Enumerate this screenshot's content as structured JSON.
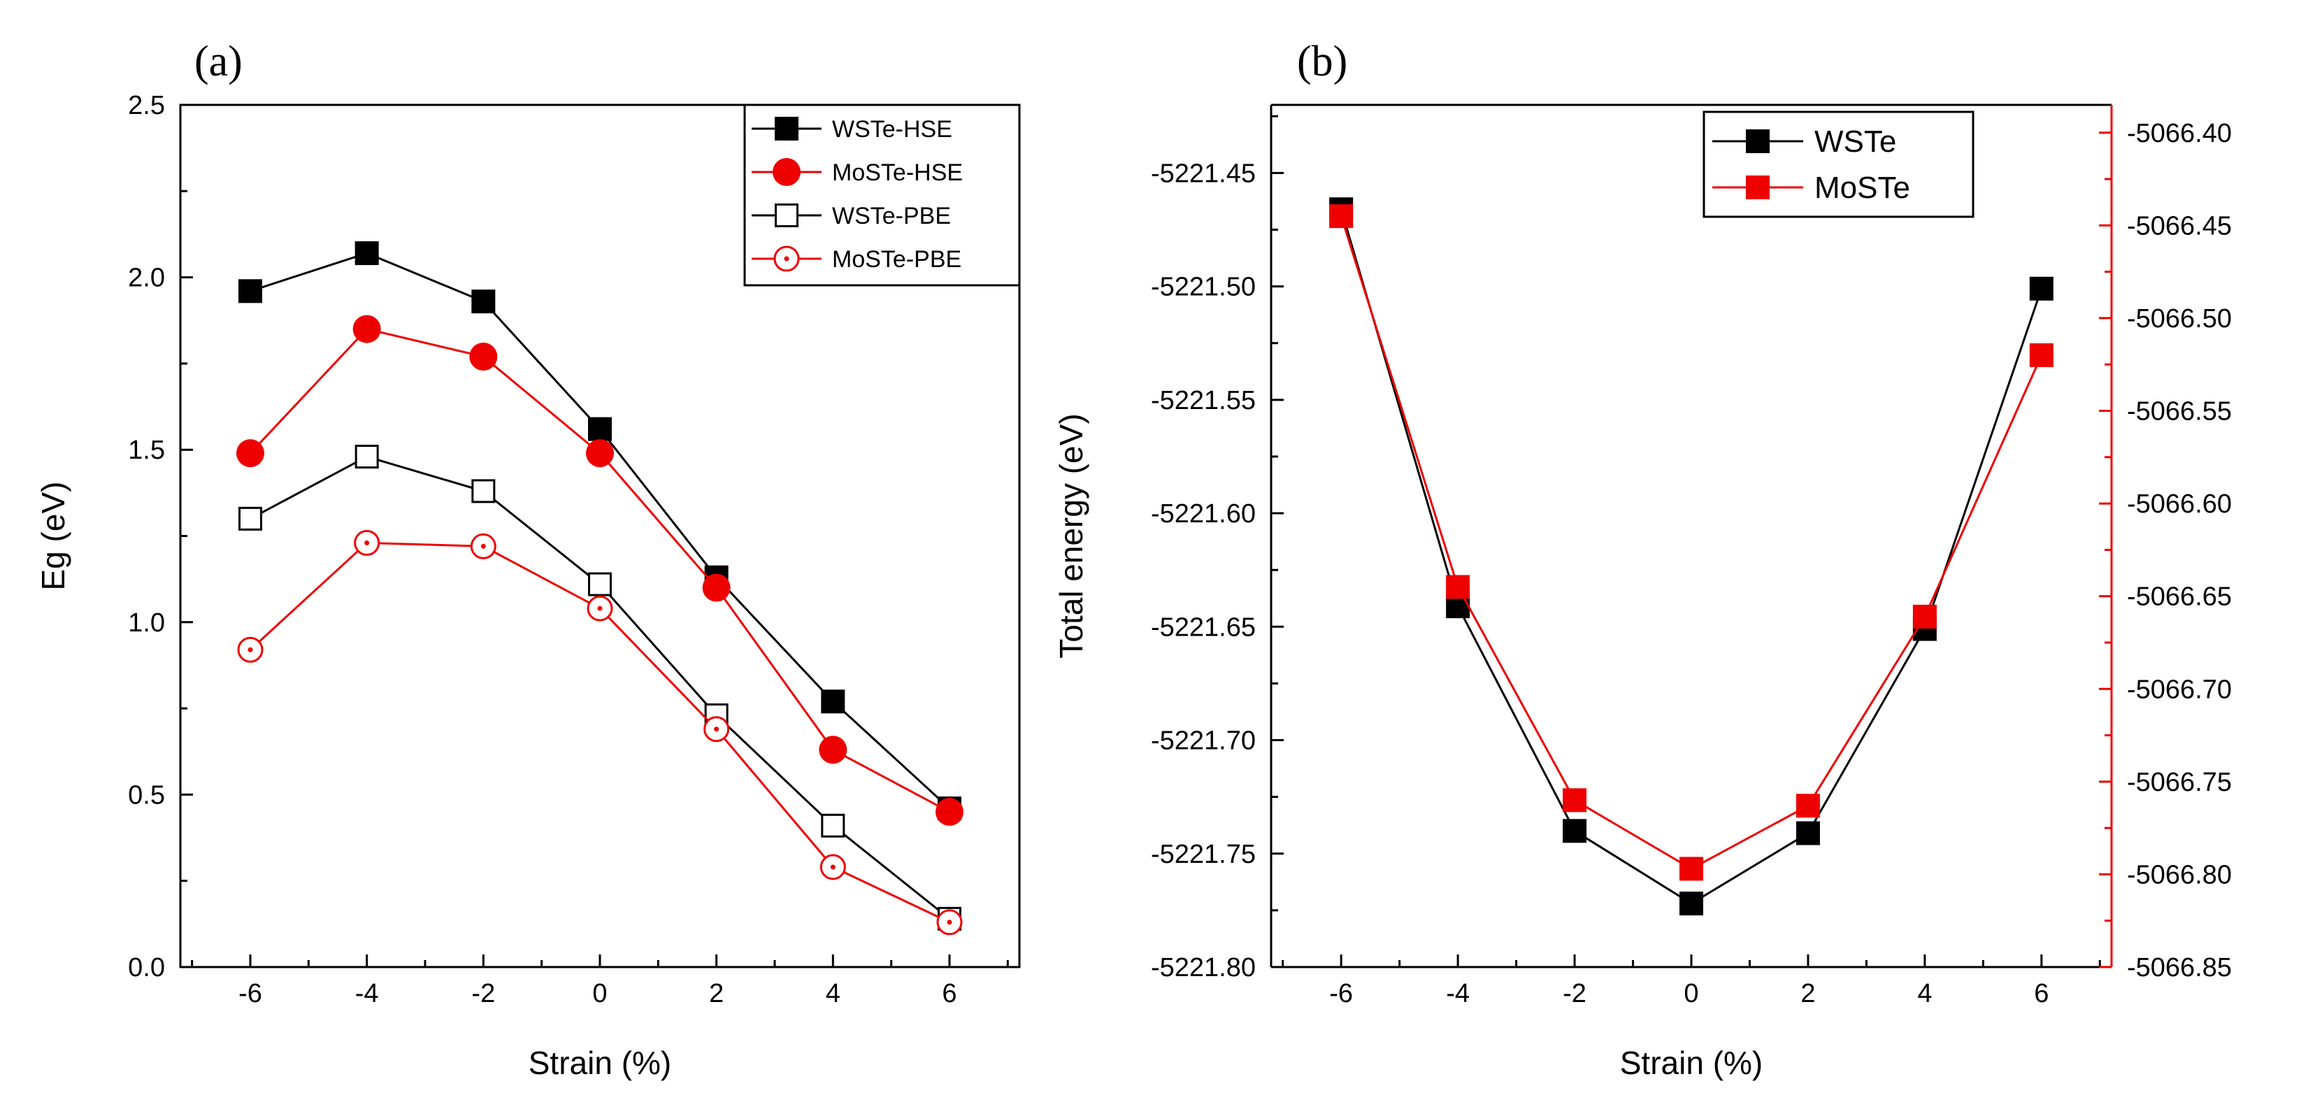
{
  "chart_data": [
    {
      "panel_label": "(a)",
      "type": "line",
      "title": "",
      "xlabel": "Strain (%)",
      "ylabel": "Eg (eV)",
      "xlim": [
        -7.2,
        7.2
      ],
      "ylim": [
        0.0,
        2.5
      ],
      "xticks": [
        "-6",
        "-4",
        "-2",
        "0",
        "2",
        "4",
        "6"
      ],
      "yticks": [
        "0.0",
        "0.5",
        "1.0",
        "1.5",
        "2.0",
        "2.5"
      ],
      "legend_position": "top-right",
      "x": [
        -6,
        -4,
        -2,
        0,
        2,
        4,
        6
      ],
      "series": [
        {
          "name": "WSTe-HSE",
          "color": "#000000",
          "marker": "filled-square",
          "values": [
            1.96,
            2.07,
            1.93,
            1.56,
            1.13,
            0.77,
            0.46
          ]
        },
        {
          "name": "MoSTe-HSE",
          "color": "#ee0000",
          "marker": "filled-circle",
          "values": [
            1.49,
            1.85,
            1.77,
            1.49,
            1.1,
            0.63,
            0.45
          ]
        },
        {
          "name": "WSTe-PBE",
          "color": "#000000",
          "marker": "open-square",
          "values": [
            1.3,
            1.48,
            1.38,
            1.11,
            0.73,
            0.41,
            0.14
          ]
        },
        {
          "name": "MoSTe-PBE",
          "color": "#ee0000",
          "marker": "open-circle-dot",
          "values": [
            0.92,
            1.23,
            1.22,
            1.04,
            0.69,
            0.29,
            0.13
          ]
        }
      ]
    },
    {
      "panel_label": "(b)",
      "type": "line",
      "title": "",
      "xlabel": "Strain (%)",
      "ylabel": "Total energy (eV)",
      "xlim": [
        -7.2,
        7.2
      ],
      "ylim_left": [
        -5221.8,
        -5221.42
      ],
      "ylim_right": [
        -5066.85,
        -5066.385
      ],
      "xticks": [
        "-6",
        "-4",
        "-2",
        "0",
        "2",
        "4",
        "6"
      ],
      "yticks_left": [
        "-5221.45",
        "-5221.50",
        "-5221.55",
        "-5221.60",
        "-5221.65",
        "-5221.70",
        "-5221.75",
        "-5221.80"
      ],
      "yticks_right": [
        "-5066.40",
        "-5066.45",
        "-5066.50",
        "-5066.55",
        "-5066.60",
        "-5066.65",
        "-5066.70",
        "-5066.75",
        "-5066.80",
        "-5066.85"
      ],
      "legend_position": "top-center",
      "x": [
        -6,
        -4,
        -2,
        0,
        2,
        4,
        6
      ],
      "series": [
        {
          "name": "WSTe",
          "axis": "left",
          "color": "#000000",
          "marker": "filled-square",
          "values": [
            -5221.466,
            -5221.641,
            -5221.74,
            -5221.772,
            -5221.741,
            -5221.651,
            -5221.501
          ]
        },
        {
          "name": "MoSTe",
          "axis": "right",
          "color": "#ee0000",
          "marker": "filled-square",
          "values": [
            -5066.445,
            -5066.645,
            -5066.76,
            -5066.797,
            -5066.763,
            -5066.661,
            -5066.52
          ]
        }
      ]
    }
  ]
}
